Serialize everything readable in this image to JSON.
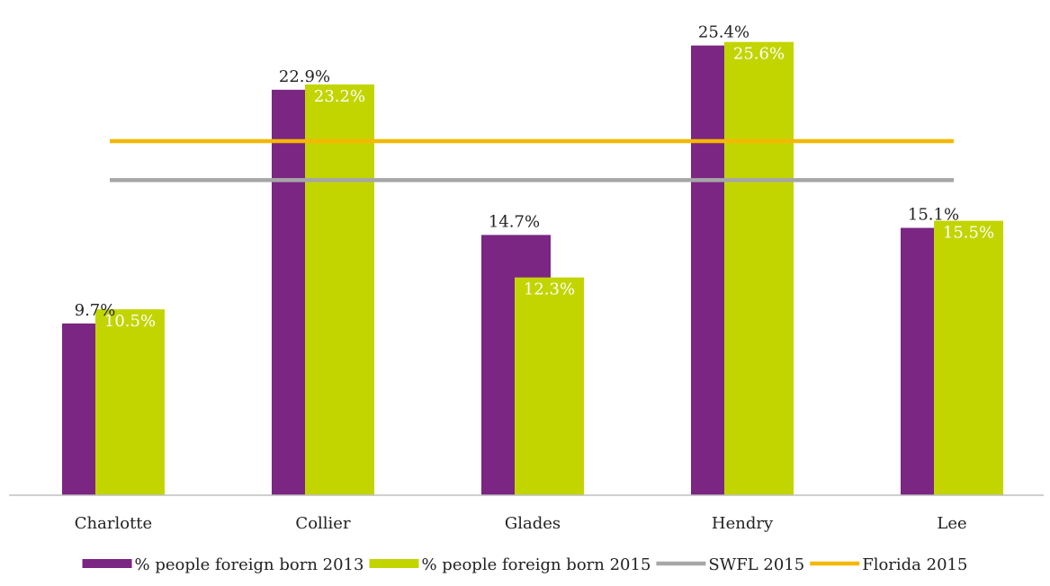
{
  "chart_data": {
    "type": "bar",
    "categories": [
      "Charlotte",
      "Collier",
      "Glades",
      "Hendry",
      "Lee"
    ],
    "series": [
      {
        "name": "% people foreign born 2013",
        "values": [
          9.7,
          22.9,
          14.7,
          25.4,
          15.1
        ],
        "labels": [
          "9.7%",
          "22.9%",
          "14.7%",
          "25.4%",
          "15.1%"
        ],
        "color": "#7a2682"
      },
      {
        "name": "% people foreign born 2015",
        "values": [
          10.5,
          23.2,
          12.3,
          25.6,
          15.5
        ],
        "labels": [
          "10.5%",
          "23.2%",
          "12.3%",
          "25.6%",
          "15.5%"
        ],
        "color": "#c2d500"
      }
    ],
    "reference_lines": [
      {
        "name": "SWFL 2015",
        "value": 17.8,
        "color": "#a6a6a6"
      },
      {
        "name": "Florida 2015",
        "value": 20.0,
        "color": "#f5b800"
      }
    ],
    "ylim": [
      0,
      27
    ],
    "grid": false,
    "legend_position": "bottom",
    "title": "",
    "xlabel": "",
    "ylabel": ""
  }
}
